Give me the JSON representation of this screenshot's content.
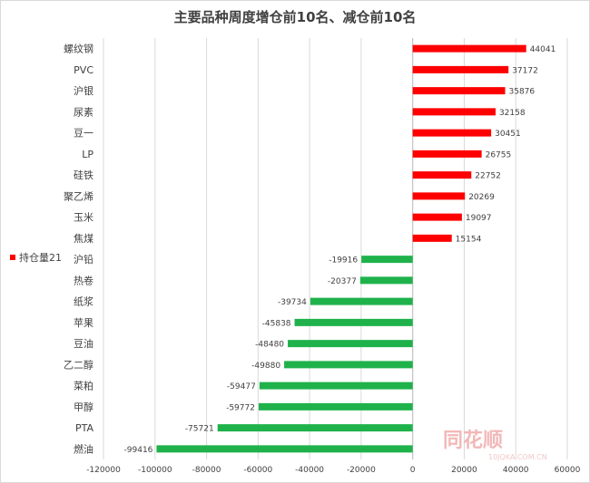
{
  "chart_data": {
    "type": "bar",
    "orientation": "horizontal",
    "title": "主要品种周度增仓前10名、减仓前10名",
    "categories": [
      "螺纹钢",
      "PVC",
      "沪银",
      "尿素",
      "豆一",
      "LP",
      "硅铁",
      "聚乙烯",
      "玉米",
      "焦煤",
      "沪铅",
      "热卷",
      "纸浆",
      "苹果",
      "豆油",
      "乙二醇",
      "菜粕",
      "甲醇",
      "PTA",
      "燃油"
    ],
    "series": [
      {
        "name": "持仓量21",
        "values": [
          44041,
          37172,
          35876,
          32158,
          30451,
          26755,
          22752,
          20269,
          19097,
          15154,
          -19916,
          -20377,
          -39734,
          -45838,
          -48480,
          -49880,
          -59477,
          -59772,
          -75721,
          -99416
        ]
      }
    ],
    "xlim": [
      -120000,
      60000
    ],
    "xticks": [
      "-120000",
      "-100000",
      "-80000",
      "-60000",
      "-40000",
      "-20000",
      "0",
      "20000",
      "40000",
      "60000"
    ],
    "grid": true,
    "legend_position": "left",
    "colors": {
      "positive": "#ff0000",
      "negative": "#1fb24b",
      "grid": "#d9d9d9",
      "text": "#404040"
    }
  },
  "watermark": {
    "logo": "同花顺",
    "url": "10JQKA.COM.CN"
  }
}
